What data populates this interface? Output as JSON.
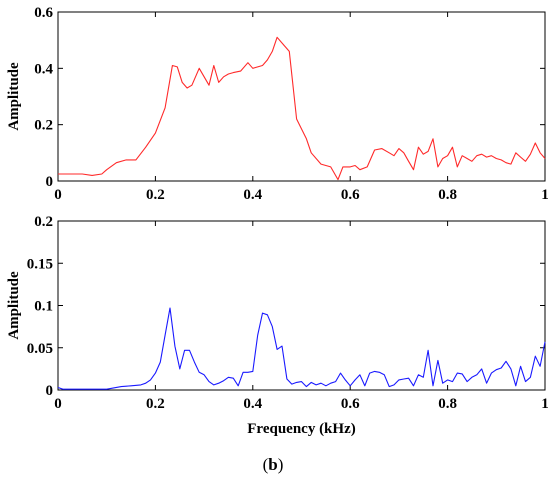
{
  "figure": {
    "caption_prefix": "(",
    "caption_letter": "b",
    "caption_suffix": ")"
  },
  "chart_data": [
    {
      "type": "line",
      "title": "",
      "xlabel": "",
      "ylabel": "Amplitude",
      "xlim": [
        0,
        1
      ],
      "ylim": [
        0,
        0.6
      ],
      "x_ticks": [
        "0",
        "0.2",
        "0.4",
        "0.6",
        "0.8",
        "1"
      ],
      "y_ticks": [
        "0",
        "0.2",
        "0.4",
        "0.6"
      ],
      "grid": false,
      "colors": {
        "series": "#ff2a2a"
      },
      "series": [
        {
          "x": [
            0,
            0.02,
            0.05,
            0.07,
            0.09,
            0.1,
            0.12,
            0.14,
            0.16,
            0.18,
            0.2,
            0.22,
            0.235,
            0.245,
            0.255,
            0.265,
            0.275,
            0.29,
            0.31,
            0.32,
            0.33,
            0.34,
            0.35,
            0.36,
            0.375,
            0.39,
            0.4,
            0.42,
            0.43,
            0.44,
            0.45,
            0.46,
            0.475,
            0.49,
            0.51,
            0.52,
            0.54,
            0.56,
            0.575,
            0.585,
            0.6,
            0.61,
            0.62,
            0.635,
            0.65,
            0.665,
            0.68,
            0.69,
            0.7,
            0.71,
            0.72,
            0.73,
            0.74,
            0.75,
            0.76,
            0.77,
            0.78,
            0.79,
            0.8,
            0.81,
            0.82,
            0.83,
            0.84,
            0.85,
            0.86,
            0.87,
            0.88,
            0.89,
            0.9,
            0.91,
            0.92,
            0.93,
            0.94,
            0.95,
            0.96,
            0.97,
            0.98,
            0.99,
            1.0
          ],
          "y": [
            0.025,
            0.025,
            0.025,
            0.02,
            0.025,
            0.04,
            0.065,
            0.075,
            0.075,
            0.12,
            0.17,
            0.26,
            0.41,
            0.405,
            0.35,
            0.33,
            0.34,
            0.4,
            0.34,
            0.41,
            0.35,
            0.37,
            0.38,
            0.385,
            0.39,
            0.42,
            0.4,
            0.41,
            0.43,
            0.46,
            0.51,
            0.49,
            0.46,
            0.22,
            0.15,
            0.1,
            0.06,
            0.05,
            0.005,
            0.05,
            0.05,
            0.055,
            0.04,
            0.05,
            0.11,
            0.115,
            0.1,
            0.09,
            0.115,
            0.1,
            0.07,
            0.04,
            0.12,
            0.095,
            0.105,
            0.15,
            0.05,
            0.08,
            0.09,
            0.12,
            0.05,
            0.09,
            0.08,
            0.07,
            0.09,
            0.095,
            0.085,
            0.09,
            0.08,
            0.075,
            0.065,
            0.06,
            0.1,
            0.085,
            0.07,
            0.095,
            0.135,
            0.1,
            0.08
          ]
        }
      ]
    },
    {
      "type": "line",
      "title": "",
      "xlabel": "Frequency (kHz)",
      "ylabel": "Amplitude",
      "xlim": [
        0,
        1
      ],
      "ylim": [
        0,
        0.2
      ],
      "x_ticks": [
        "0",
        "0.2",
        "0.4",
        "0.6",
        "0.8",
        "1"
      ],
      "y_ticks": [
        "0",
        "0.05",
        "0.1",
        "0.15",
        "0.2"
      ],
      "grid": false,
      "colors": {
        "series": "#1a1aff"
      },
      "series": [
        {
          "x": [
            0,
            0.01,
            0.03,
            0.06,
            0.1,
            0.13,
            0.15,
            0.17,
            0.18,
            0.19,
            0.2,
            0.21,
            0.22,
            0.23,
            0.24,
            0.25,
            0.26,
            0.27,
            0.28,
            0.29,
            0.3,
            0.31,
            0.32,
            0.33,
            0.34,
            0.35,
            0.36,
            0.37,
            0.38,
            0.39,
            0.4,
            0.41,
            0.42,
            0.43,
            0.44,
            0.45,
            0.46,
            0.47,
            0.48,
            0.49,
            0.5,
            0.51,
            0.52,
            0.53,
            0.54,
            0.55,
            0.56,
            0.57,
            0.58,
            0.59,
            0.6,
            0.61,
            0.62,
            0.63,
            0.64,
            0.65,
            0.66,
            0.67,
            0.68,
            0.69,
            0.7,
            0.71,
            0.72,
            0.73,
            0.74,
            0.75,
            0.76,
            0.77,
            0.78,
            0.79,
            0.8,
            0.81,
            0.82,
            0.83,
            0.84,
            0.85,
            0.86,
            0.87,
            0.88,
            0.89,
            0.9,
            0.91,
            0.92,
            0.93,
            0.94,
            0.95,
            0.96,
            0.97,
            0.98,
            0.99,
            1.0
          ],
          "y": [
            0.003,
            0.001,
            0.001,
            0.001,
            0.001,
            0.004,
            0.005,
            0.006,
            0.008,
            0.012,
            0.02,
            0.033,
            0.065,
            0.097,
            0.052,
            0.025,
            0.047,
            0.047,
            0.033,
            0.021,
            0.018,
            0.01,
            0.006,
            0.008,
            0.011,
            0.015,
            0.014,
            0.005,
            0.021,
            0.021,
            0.022,
            0.065,
            0.091,
            0.089,
            0.075,
            0.048,
            0.052,
            0.013,
            0.007,
            0.009,
            0.01,
            0.004,
            0.009,
            0.006,
            0.008,
            0.005,
            0.008,
            0.01,
            0.02,
            0.012,
            0.005,
            0.012,
            0.018,
            0.005,
            0.02,
            0.022,
            0.021,
            0.018,
            0.004,
            0.006,
            0.012,
            0.013,
            0.014,
            0.005,
            0.018,
            0.015,
            0.047,
            0.005,
            0.035,
            0.008,
            0.012,
            0.01,
            0.02,
            0.019,
            0.01,
            0.015,
            0.018,
            0.025,
            0.008,
            0.02,
            0.024,
            0.026,
            0.034,
            0.025,
            0.005,
            0.028,
            0.01,
            0.015,
            0.04,
            0.028,
            0.057
          ]
        }
      ]
    }
  ]
}
